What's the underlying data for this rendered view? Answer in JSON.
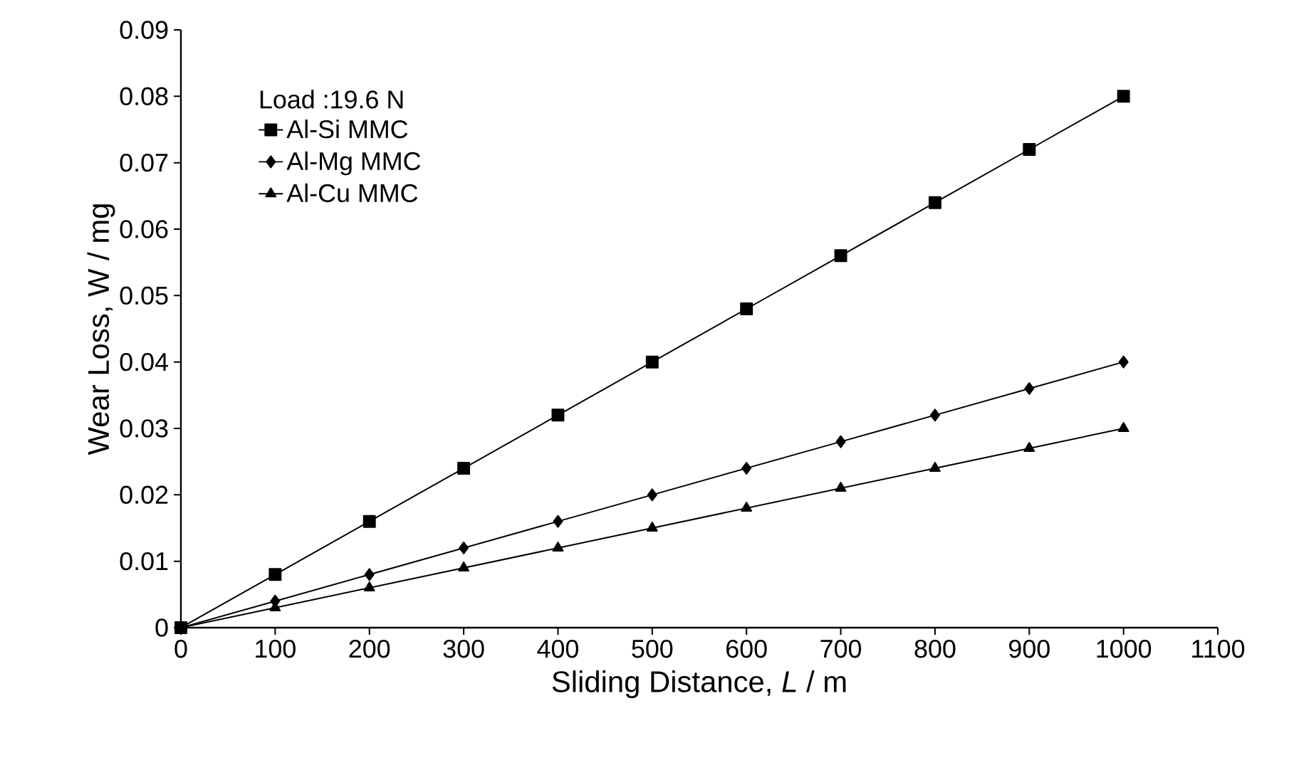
{
  "chart_data": {
    "type": "line",
    "xlabel": "Sliding  Distance, *L* / m",
    "ylabel": "Wear Loss, W / mg",
    "legend_title": "Load :19.6 N",
    "x": [
      0,
      100,
      200,
      300,
      400,
      500,
      600,
      700,
      800,
      900,
      1000
    ],
    "series": [
      {
        "name": "Al-Si MMC",
        "color": "#000000",
        "marker": "square",
        "values": [
          0,
          0.008,
          0.016,
          0.024,
          0.032,
          0.04,
          0.048,
          0.056,
          0.064,
          0.072,
          0.08
        ]
      },
      {
        "name": "Al-Mg MMC",
        "color": "#000000",
        "marker": "diamond",
        "values": [
          0,
          0.004,
          0.008,
          0.012,
          0.016,
          0.02,
          0.024,
          0.028,
          0.032,
          0.036,
          0.04
        ]
      },
      {
        "name": "Al-Cu MMC",
        "color": "#000000",
        "marker": "triangle",
        "values": [
          0,
          0.003,
          0.006,
          0.009,
          0.012,
          0.015,
          0.018,
          0.021,
          0.024,
          0.027,
          0.03
        ]
      }
    ],
    "xlim": [
      0,
      1100
    ],
    "xticks": [
      0,
      100,
      200,
      300,
      400,
      500,
      600,
      700,
      800,
      900,
      1000,
      1100
    ],
    "ylim": [
      0,
      0.09
    ],
    "yticks": [
      {
        "value": 0,
        "label": "0"
      },
      0.01,
      0.02,
      0.03,
      0.04,
      0.05,
      0.06,
      0.07,
      0.08,
      0.09
    ],
    "legend": "top left",
    "grid": false,
    "line_style": "solid"
  }
}
